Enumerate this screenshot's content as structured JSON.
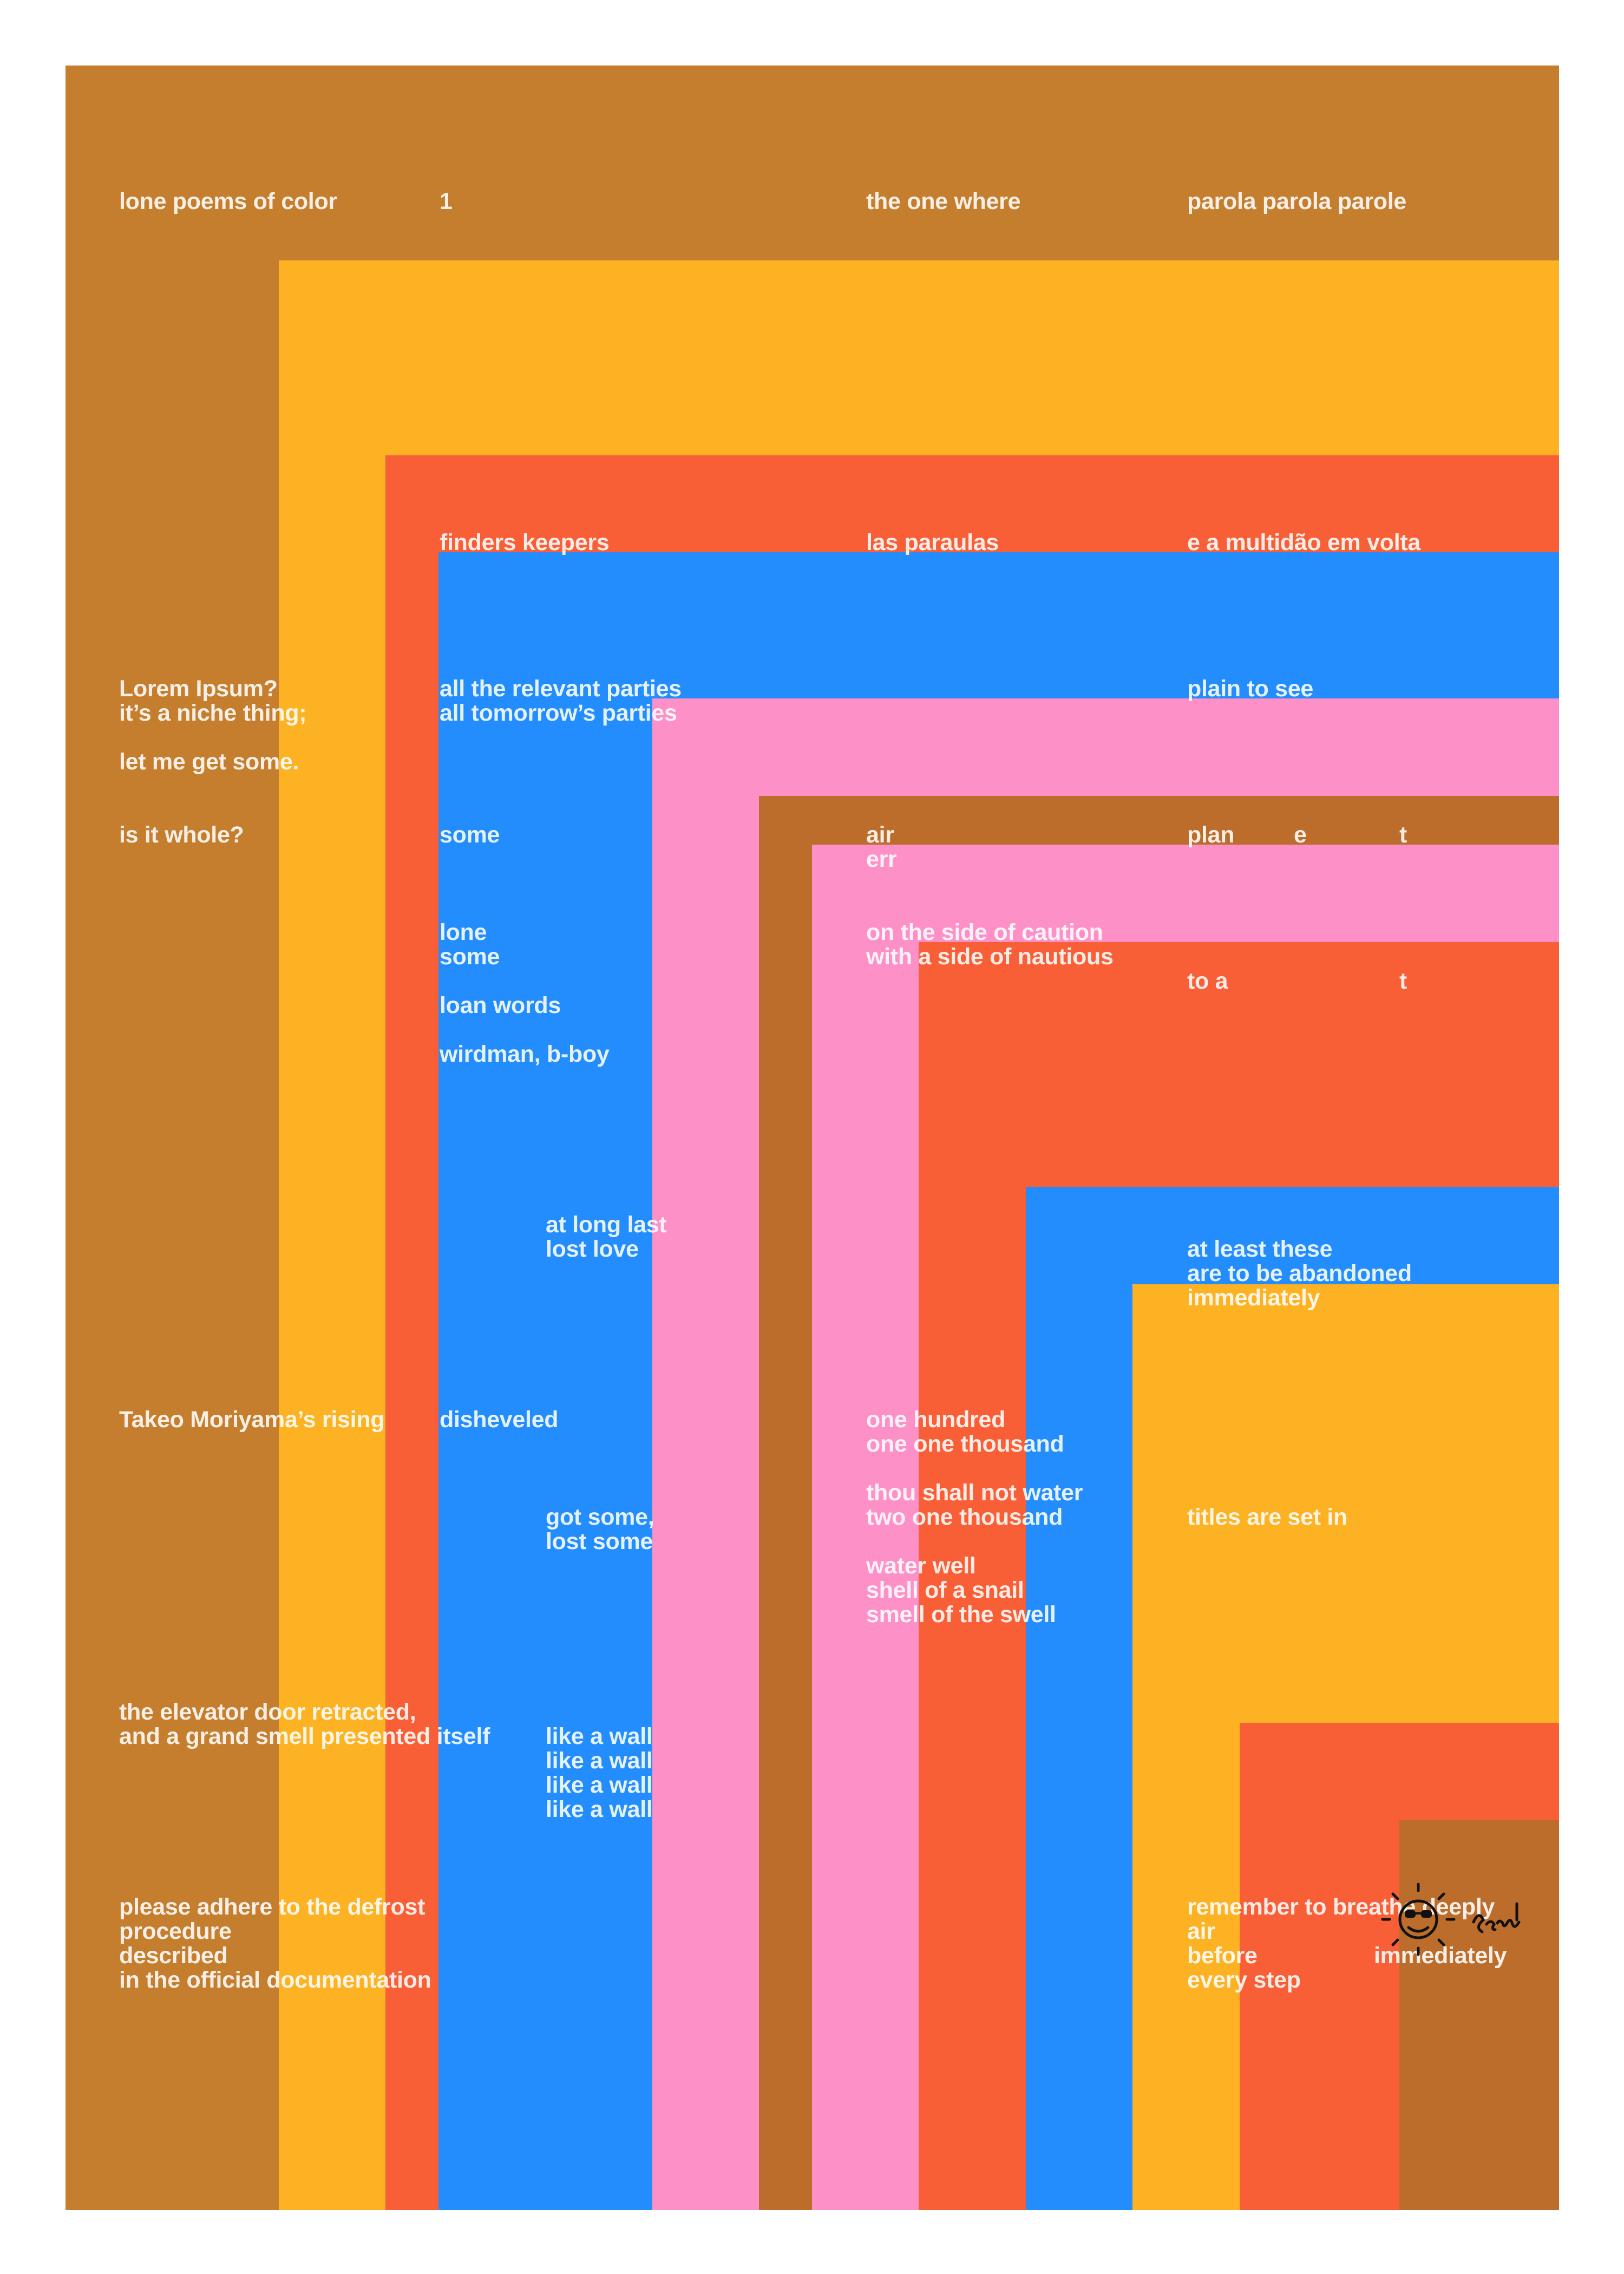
{
  "colors": {
    "page": "#ffffff",
    "ochre": "#c57e2e",
    "yellow": "#fdb223",
    "orange_red": "#f95f36",
    "blue": "#238dfd",
    "pink": "#fd90c6",
    "brown": "#bc6d2b",
    "text": "#ffffff"
  },
  "header": {
    "col1": "lone poems of color",
    "col2": "1",
    "col3": "the one where",
    "col4": "parola parola parole"
  },
  "row2": {
    "col2": "finders keepers",
    "col3": "las paraulas",
    "col4": "e a multidão em volta"
  },
  "lorem": {
    "line1": "Lorem Ipsum?",
    "line2": "it’s a niche thing;",
    "line3": "let me get some."
  },
  "parties": {
    "line1": "all the relevant parties",
    "line2": "all tomorrow’s parties"
  },
  "plain_to_see": "plain to see",
  "whole": "is it whole?",
  "some": "some",
  "air": {
    "line1": "air",
    "line2": "err"
  },
  "planet": {
    "part1": "plan",
    "part2": "e",
    "part3": "t"
  },
  "lone_some": {
    "line1": "lone",
    "line2": "some"
  },
  "caution": {
    "line1": "on the side of caution",
    "line2": "with a side of nautious"
  },
  "to_a_t": {
    "part1": "to a",
    "part2": "t"
  },
  "loan_words": "loan words",
  "wirdman": "wirdman, b-boy",
  "long_last": {
    "line1": "at long last",
    "line2": "lost love"
  },
  "abandoned": {
    "line1": "at least these",
    "line2": "are to be abandoned",
    "line3": "immediately"
  },
  "moriyama": "Takeo Moriyama’s rising",
  "disheveled": "disheveled",
  "hundred": {
    "line1": "one hundred",
    "line2": "one one thousand"
  },
  "water": {
    "line1": "thou shall not water",
    "line2": "two one thousand"
  },
  "got_some": {
    "line1": "got some,",
    "line2": "lost some"
  },
  "titles": "titles are set in",
  "well": {
    "line1": "water well",
    "line2": "shell of a snail",
    "line3": "smell of the swell"
  },
  "elevator": {
    "line1": "the elevator door retracted,",
    "line2": "and a grand smell presented itself"
  },
  "wall": {
    "line1": "like a wall",
    "line2": "like a wall",
    "line3": "like a wall",
    "line4": "like a wall"
  },
  "defrost": {
    "line1": "please adhere to the defrost",
    "line2": "procedure",
    "line3": "described",
    "line4": "in the official documentation"
  },
  "breathe": {
    "line1": "remember to breathe deeply",
    "line2": "air",
    "line3": "before",
    "line4": "immediately",
    "line5": "every step"
  },
  "signature_icons": [
    "sun-face-icon",
    "handwritten-signature"
  ]
}
